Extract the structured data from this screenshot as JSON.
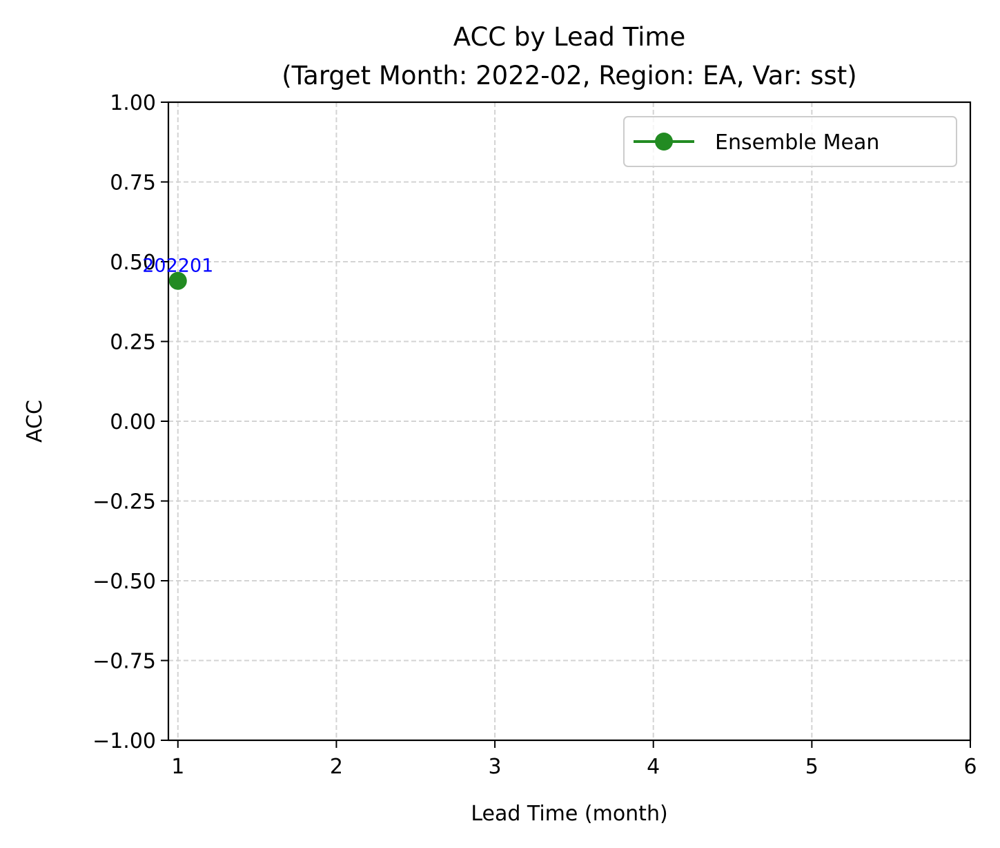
{
  "chart_data": {
    "type": "line",
    "title": "ACC by Lead Time\n(Target Month: 2022-02, Region: EA, Var: sst)",
    "title_lines": [
      "ACC by Lead Time",
      "(Target Month: 2022-02, Region: EA, Var: sst)"
    ],
    "xlabel": "Lead Time (month)",
    "ylabel": "ACC",
    "xlim": [
      0.94,
      6
    ],
    "ylim": [
      -1.0,
      1.0
    ],
    "xticks": [
      1,
      2,
      3,
      4,
      5,
      6
    ],
    "xtick_labels": [
      "1",
      "2",
      "3",
      "4",
      "5",
      "6"
    ],
    "yticks": [
      1.0,
      0.75,
      0.5,
      0.25,
      0.0,
      -0.25,
      -0.5,
      -0.75,
      -1.0
    ],
    "ytick_labels": [
      "1.00",
      "0.75",
      "0.50",
      "0.25",
      "0.00",
      "−0.25",
      "−0.50",
      "−0.75",
      "−1.00"
    ],
    "grid": true,
    "legend_position": "top-right",
    "series": [
      {
        "name": "Ensemble Mean",
        "color": "#228b22",
        "marker": "circle",
        "x": [
          1
        ],
        "y": [
          0.44
        ]
      }
    ],
    "annotations": [
      {
        "x": 1,
        "y": 0.44,
        "text": "202201",
        "color": "#0000ff"
      }
    ]
  }
}
